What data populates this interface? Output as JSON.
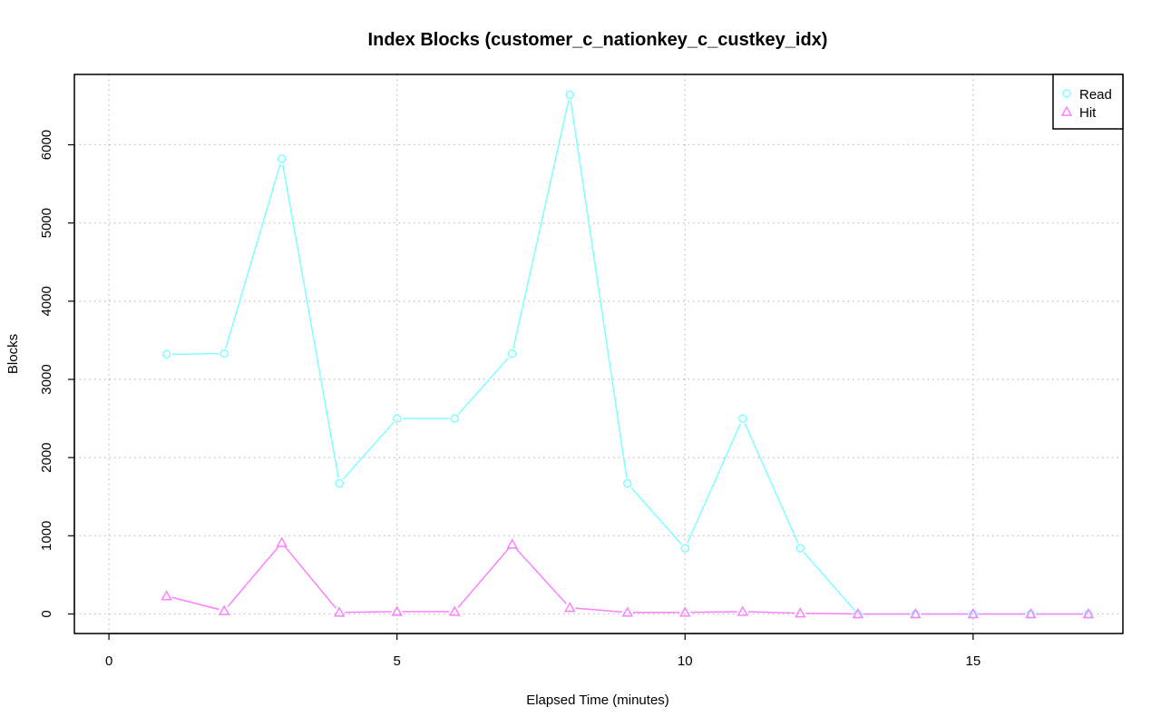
{
  "chart_data": {
    "type": "line",
    "title": "Index Blocks (customer_c_nationkey_c_custkey_idx)",
    "xlabel": "Elapsed Time (minutes)",
    "ylabel": "Blocks",
    "xlim": [
      -0.6,
      17.6
    ],
    "ylim": [
      -250,
      6900
    ],
    "xticks": [
      0,
      5,
      10,
      15
    ],
    "yticks": [
      0,
      1000,
      2000,
      3000,
      4000,
      5000,
      6000
    ],
    "grid": true,
    "legend_position": "top-right",
    "x": [
      1,
      2,
      3,
      4,
      5,
      6,
      7,
      8,
      9,
      10,
      11,
      12,
      13,
      14,
      15,
      16,
      17
    ],
    "series": [
      {
        "name": "Read",
        "color": "#80ffff",
        "marker": "circle",
        "values": [
          3320,
          3330,
          5820,
          1670,
          2500,
          2500,
          3330,
          6640,
          1670,
          840,
          2500,
          840,
          0,
          0,
          0,
          0,
          0
        ]
      },
      {
        "name": "Hit",
        "color": "#ff80ff",
        "marker": "triangle",
        "values": [
          230,
          40,
          910,
          20,
          30,
          30,
          890,
          80,
          20,
          20,
          30,
          10,
          0,
          0,
          0,
          0,
          0
        ]
      }
    ]
  }
}
